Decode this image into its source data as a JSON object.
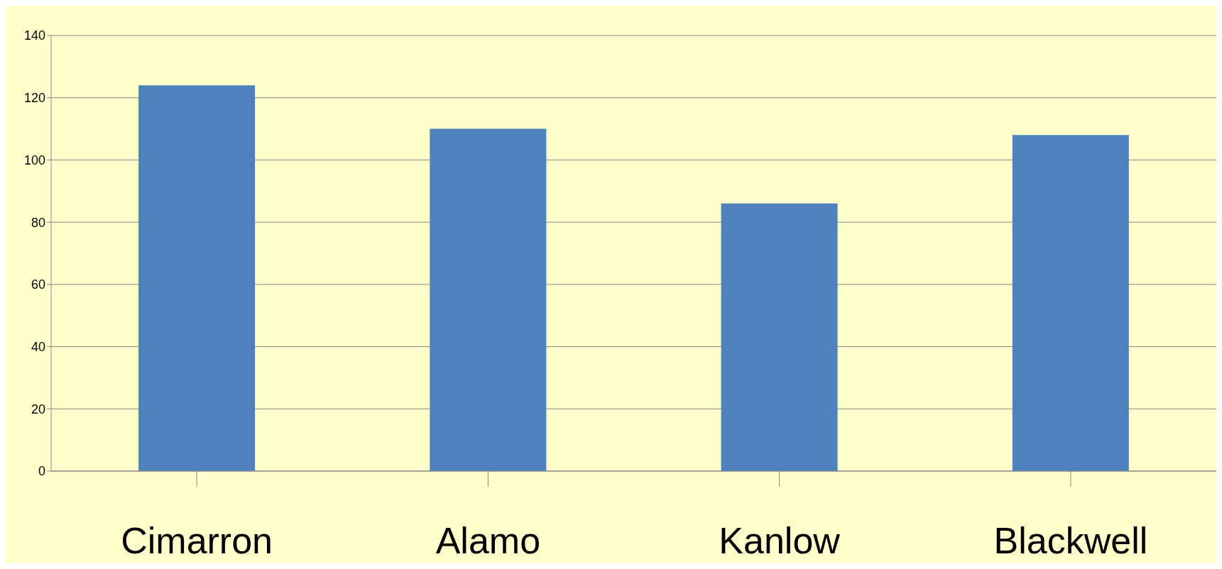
{
  "chart_data": {
    "type": "bar",
    "categories": [
      "Cimarron",
      "Alamo",
      "Kanlow",
      "Blackwell"
    ],
    "values": [
      124,
      110,
      86,
      108
    ],
    "color": "#4f81bd",
    "ylim": [
      0,
      140
    ],
    "yticks": [
      0,
      20,
      40,
      60,
      80,
      100,
      120,
      140
    ],
    "grid": "y"
  }
}
